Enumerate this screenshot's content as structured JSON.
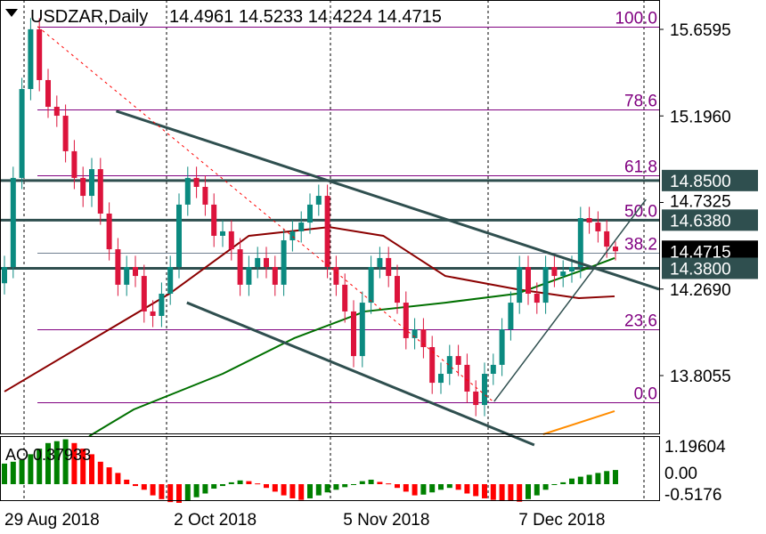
{
  "header": {
    "symbol": "USDZAR,Daily",
    "ohlc": "14.4961 14.5233 14.4224 14.4715"
  },
  "indicator": {
    "label": "AO 0.37933"
  },
  "colors": {
    "bull": "#0b8a80",
    "bear": "#dc143c",
    "fib": "#800080",
    "line": "#2f4f4f",
    "ma_slow": "#8b0000",
    "ma_mid": "#007000",
    "ma_fast": "#ff8c00",
    "ao_up": "#008000",
    "ao_down": "#ff0000"
  },
  "chart_data": {
    "type": "candlestick",
    "title": "USDZAR,Daily",
    "first_open": 14.3,
    "close": [
      14.387,
      14.864,
      15.34,
      15.66,
      15.388,
      15.245,
      15.197,
      15.007,
      14.864,
      14.768,
      14.911,
      14.673,
      14.482,
      14.292,
      14.387,
      14.339,
      14.149,
      14.125,
      14.244,
      14.387,
      14.721,
      14.864,
      14.816,
      14.721,
      14.554,
      14.578,
      14.482,
      14.292,
      14.387,
      14.435,
      14.387,
      14.292,
      14.53,
      14.578,
      14.625,
      14.721,
      14.768,
      14.387,
      14.292,
      14.149,
      13.91,
      14.196,
      14.387,
      14.435,
      14.339,
      14.196,
      14.006,
      14.053,
      13.958,
      13.767,
      13.815,
      13.91,
      13.863,
      13.72,
      13.648,
      13.815,
      13.863,
      14.053,
      14.196,
      14.387,
      14.244,
      14.196,
      14.387,
      14.339,
      14.363,
      14.387,
      14.649,
      14.625,
      14.578,
      14.4961,
      14.4715
    ],
    "last_bar": {
      "open": 14.4961,
      "high": 14.5233,
      "low": 14.4224,
      "close": 14.4715
    },
    "ylim": [
      13.45,
      15.72
    ],
    "y_ticks": [
      "15.6595",
      "15.1960",
      "14.7325",
      "14.2690",
      "13.8055"
    ],
    "x_ticks": [
      {
        "label": "29 Aug 2018",
        "bar": 0
      },
      {
        "label": "2 Oct 2018",
        "bar": 19.4
      },
      {
        "label": "5 Nov 2018",
        "bar": 38.8
      },
      {
        "label": "7 Dec 2018",
        "bar": 58.9
      }
    ],
    "price_boxes": [
      {
        "label": "14.8500",
        "price": 14.85,
        "style": "level"
      },
      {
        "label": "14.6380",
        "price": 14.638,
        "style": "level"
      },
      {
        "label": "14.4715",
        "price": 14.4715,
        "style": "current"
      },
      {
        "label": "14.3800",
        "price": 14.38,
        "style": "level"
      }
    ],
    "fib_levels": [
      {
        "label": "100.0",
        "price": 15.675
      },
      {
        "label": "78.6",
        "price": 15.231
      },
      {
        "label": "61.8",
        "price": 14.878
      },
      {
        "label": "50.0",
        "price": 14.638
      },
      {
        "label": "38.2",
        "price": 14.465
      },
      {
        "label": "23.6",
        "price": 14.053
      },
      {
        "label": "0.0",
        "price": 13.662
      }
    ],
    "moving_averages": [
      {
        "color_key": "ma_slow",
        "points": [
          [
            0,
            13.72
          ],
          [
            18.9,
            14.244
          ],
          [
            28,
            14.554
          ],
          [
            37.2,
            14.601
          ],
          [
            43.4,
            14.554
          ],
          [
            50.5,
            14.339
          ],
          [
            58.7,
            14.268
          ],
          [
            65.8,
            14.22
          ],
          [
            69.9,
            14.23
          ]
        ]
      },
      {
        "color_key": "ma_mid",
        "points": [
          [
            9.7,
            13.481
          ],
          [
            14.8,
            13.624
          ],
          [
            25,
            13.815
          ],
          [
            33.2,
            14.006
          ],
          [
            41.3,
            14.149
          ],
          [
            50.5,
            14.196
          ],
          [
            58.7,
            14.244
          ],
          [
            65.8,
            14.363
          ],
          [
            69.9,
            14.435
          ]
        ]
      },
      {
        "color_key": "ma_fast",
        "points": [
          [
            61.7,
            13.491
          ],
          [
            69.9,
            13.615
          ]
        ]
      }
    ],
    "trendlines": [
      {
        "name": "channel-top",
        "points": [
          [
            12.8,
            15.222
          ],
          [
            75,
            14.268
          ]
        ]
      },
      {
        "name": "channel-bottom",
        "points": [
          [
            20.9,
            14.196
          ],
          [
            60.7,
            13.434
          ]
        ]
      },
      {
        "name": "uptrend",
        "points": [
          [
            56.1,
            13.667
          ],
          [
            73.5,
            14.749
          ]
        ]
      },
      {
        "name": "fib-diagonal",
        "points": [
          [
            3.8,
            15.675
          ],
          [
            56.1,
            13.662
          ]
        ],
        "dashed": true
      }
    ],
    "ao": {
      "label": "AO 0.37933",
      "y_ticks": [
        "1.19604",
        "0.00",
        "-0.5176"
      ],
      "values": [
        0.55,
        0.6,
        0.65,
        0.8,
        0.95,
        1.1,
        1.15,
        1.2,
        1.1,
        0.95,
        0.8,
        0.6,
        0.45,
        0.3,
        0.12,
        -0.05,
        -0.15,
        -0.3,
        -0.4,
        -0.48,
        -0.5,
        -0.45,
        -0.35,
        -0.25,
        -0.12,
        -0.05,
        0.05,
        0.1,
        0.08,
        0.02,
        -0.1,
        -0.2,
        -0.3,
        -0.38,
        -0.42,
        -0.38,
        -0.3,
        -0.22,
        -0.15,
        -0.08,
        0.0,
        0.08,
        0.12,
        0.06,
        0.02,
        -0.1,
        -0.2,
        -0.3,
        -0.28,
        -0.22,
        -0.15,
        -0.1,
        -0.15,
        -0.25,
        -0.32,
        -0.38,
        -0.42,
        -0.44,
        -0.45,
        -0.47,
        -0.4,
        -0.3,
        -0.15,
        -0.02,
        0.05,
        0.15,
        0.2,
        0.25,
        0.3,
        0.35,
        0.379
      ]
    }
  }
}
